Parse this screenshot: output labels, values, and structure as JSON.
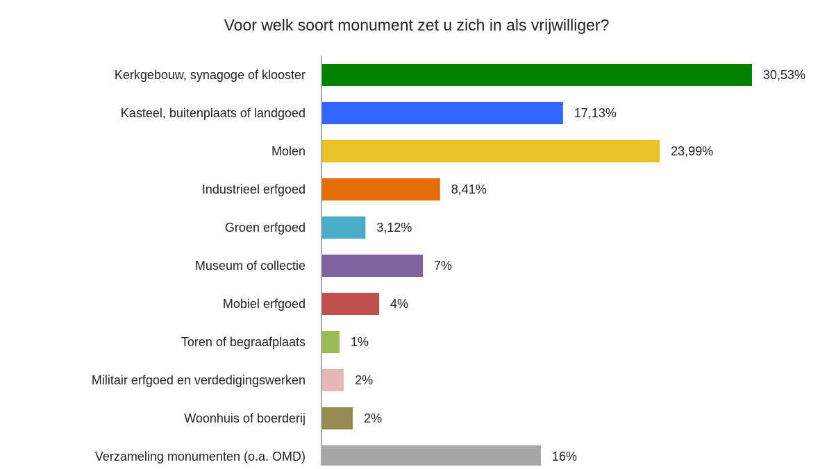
{
  "chart_data": {
    "type": "bar",
    "orientation": "horizontal",
    "title": "Voor welk soort monument zet u zich in als vrijwilliger?",
    "categories": [
      "Kerkgebouw, synagoge of klooster",
      "Kasteel, buitenplaats of landgoed",
      "Molen",
      "Industrieel erfgoed",
      "Groen erfgoed",
      "Museum of collectie",
      "Mobiel erfgoed",
      "Toren of begraafplaats",
      "Militair erfgoed en verdedigingswerken",
      "Woonhuis of boerderij",
      "Verzameling monumenten (o.a. OMD)"
    ],
    "values": [
      30.53,
      17.13,
      23.99,
      8.41,
      3.12,
      7.19,
      4.09,
      1.28,
      1.58,
      2.22,
      15.56
    ],
    "value_labels": [
      "30,53%",
      "17,13%",
      "23,99%",
      "8,41%",
      "3,12%",
      "7%",
      "4%",
      "1%",
      "2%",
      "2%",
      "16%"
    ],
    "colors": [
      "#008000",
      "#3366ff",
      "#e8c227",
      "#e46c0a",
      "#4bacc6",
      "#8064a2",
      "#c0504d",
      "#9bbb59",
      "#e6b9b8",
      "#948a54",
      "#a6a6a6"
    ]
  }
}
